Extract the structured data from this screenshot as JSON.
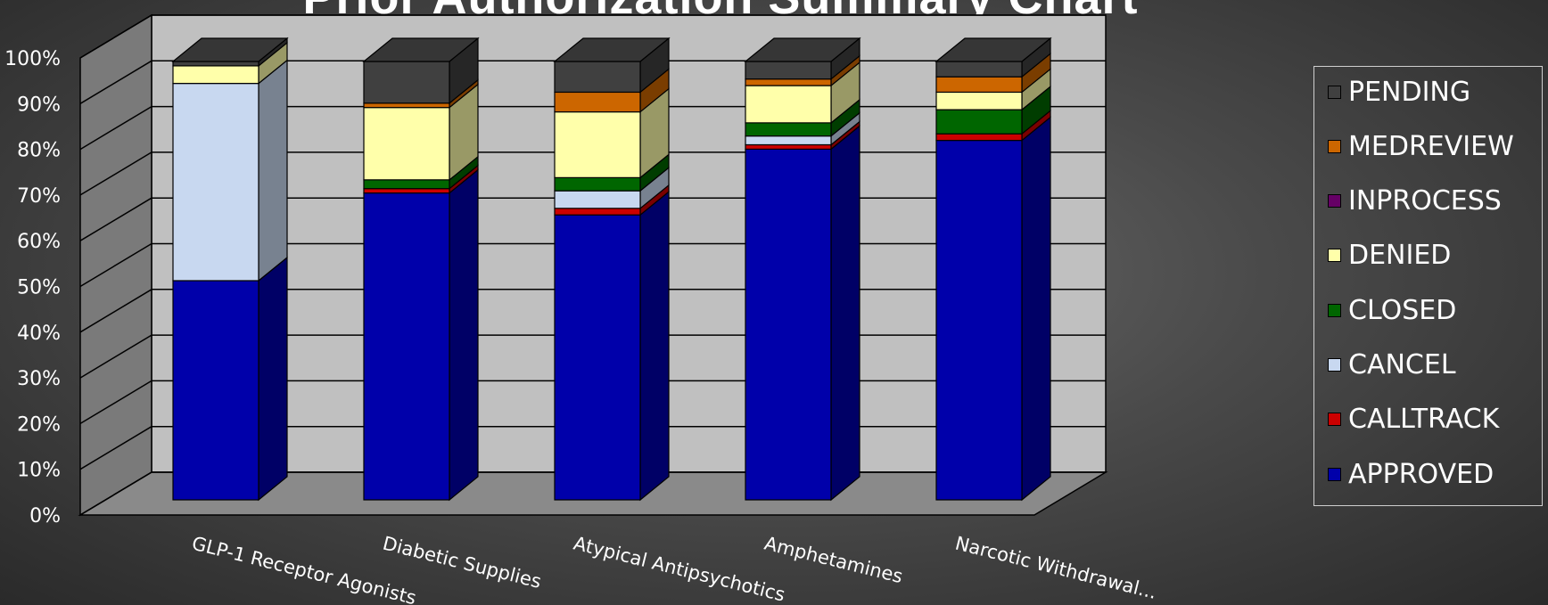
{
  "chart_data": {
    "type": "bar",
    "subtype": "stacked-100-percent-3d",
    "title": "Prior Authorization Summary Chart",
    "categories": [
      "GLP-1 Receptor Agonists",
      "Diabetic Supplies",
      "Atypical Antipsychotics",
      "Amphetamines",
      "Narcotic Withdrawal..."
    ],
    "y_ticks": [
      "0%",
      "10%",
      "20%",
      "30%",
      "40%",
      "50%",
      "60%",
      "70%",
      "80%",
      "90%",
      "100%"
    ],
    "ylim": [
      0,
      100
    ],
    "grid": true,
    "legend_position": "right",
    "series": [
      {
        "name": "APPROVED",
        "color": "#0000AA",
        "values": [
          50,
          70,
          65,
          80,
          82
        ]
      },
      {
        "name": "CALLTRACK",
        "color": "#CC0000",
        "values": [
          0,
          1,
          1.5,
          1,
          1.5
        ]
      },
      {
        "name": "CANCEL",
        "color": "#C8D8F0",
        "values": [
          45,
          0,
          4,
          2,
          0
        ]
      },
      {
        "name": "CLOSED",
        "color": "#006600",
        "values": [
          0,
          2,
          3,
          3,
          5.5
        ]
      },
      {
        "name": "DENIED",
        "color": "#FFFFAA",
        "values": [
          4,
          16.5,
          15,
          8.5,
          4
        ]
      },
      {
        "name": "INPROCESS",
        "color": "#660066",
        "values": [
          0,
          0,
          0,
          0,
          0
        ]
      },
      {
        "name": "MEDREVIEW",
        "color": "#CC6600",
        "values": [
          0,
          1,
          4.5,
          1.5,
          3.5
        ]
      },
      {
        "name": "PENDING",
        "color": "#404040",
        "values": [
          1,
          9.5,
          7,
          4,
          3.5
        ]
      }
    ]
  },
  "legend": {
    "items": [
      "PENDING",
      "MEDREVIEW",
      "INPROCESS",
      "DENIED",
      "CLOSED",
      "CANCEL",
      "CALLTRACK",
      "APPROVED"
    ]
  }
}
